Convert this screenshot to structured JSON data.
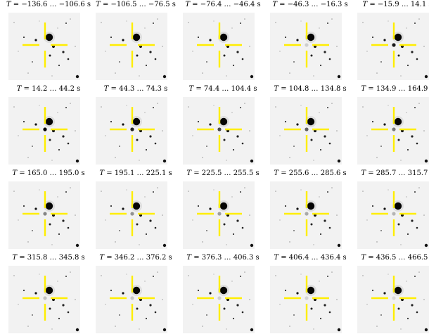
{
  "frames": [
    {
      "label": "= −136.6 … −106.6 s"
    },
    {
      "label": "= −106.5 … −76.5 s"
    },
    {
      "label": "= −76.4 … −46.4 s"
    },
    {
      "label": "= −46.3 … −16.3 s"
    },
    {
      "label": "= −15.9 … 14.1 s"
    },
    {
      "label": "= 14.2 … 44.2 s"
    },
    {
      "label": "= 44.3 … 74.3 s"
    },
    {
      "label": "= 74.4 … 104.4 s"
    },
    {
      "label": "= 104.8 … 134.8 s"
    },
    {
      "label": "= 134.9 … 164.9 s"
    },
    {
      "label": "= 165.0 … 195.0 s"
    },
    {
      "label": "= 195.1 … 225.1 s"
    },
    {
      "label": "= 225.5 … 255.5 s"
    },
    {
      "label": "= 255.6 … 285.6 s"
    },
    {
      "label": "= 285.7 … 315.7 s"
    },
    {
      "label": "= 315.8 … 345.8 s"
    },
    {
      "label": "= 346.2 … 376.2 s"
    },
    {
      "label": "= 376.3 … 406.3 s"
    },
    {
      "label": "= 406.4 … 436.4 s"
    },
    {
      "label": "= 436.5 … 466.5 s"
    }
  ],
  "time_symbol": "T",
  "colors": {
    "crosshair": "#ffee00",
    "background": "#f2f2f2",
    "star": "#000000"
  },
  "transient_visibility": [
    0,
    0,
    0,
    0.15,
    0.9,
    1,
    0.85,
    0.7,
    0.6,
    0.5,
    0.45,
    0.4,
    0.35,
    0.3,
    0.25,
    0.2,
    0.18,
    0.15,
    0.12,
    0.1
  ]
}
